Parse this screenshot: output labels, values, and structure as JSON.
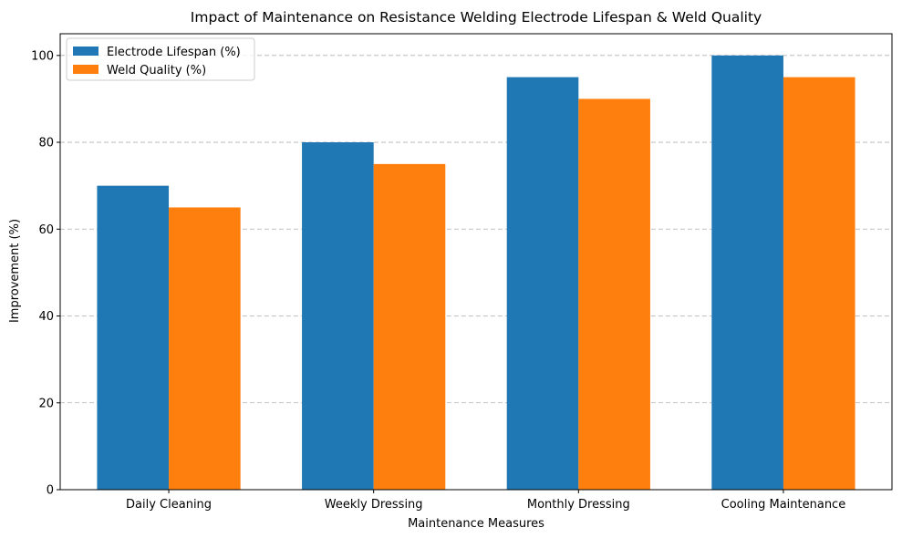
{
  "chart_data": {
    "type": "bar",
    "title": "Impact of Maintenance on Resistance Welding Electrode Lifespan & Weld Quality",
    "xlabel": "Maintenance Measures",
    "ylabel": "Improvement (%)",
    "categories": [
      "Daily Cleaning",
      "Weekly Dressing",
      "Monthly Dressing",
      "Cooling Maintenance"
    ],
    "series": [
      {
        "name": "Electrode Lifespan (%)",
        "values": [
          70,
          80,
          95,
          100
        ],
        "color": "#1f77b4"
      },
      {
        "name": "Weld Quality (%)",
        "values": [
          65,
          75,
          90,
          95
        ],
        "color": "#ff7f0e"
      }
    ],
    "ylim": [
      0,
      105
    ],
    "yticks": [
      0,
      20,
      40,
      60,
      80,
      100
    ],
    "grid": "y-dashed",
    "legend": "top-left"
  }
}
